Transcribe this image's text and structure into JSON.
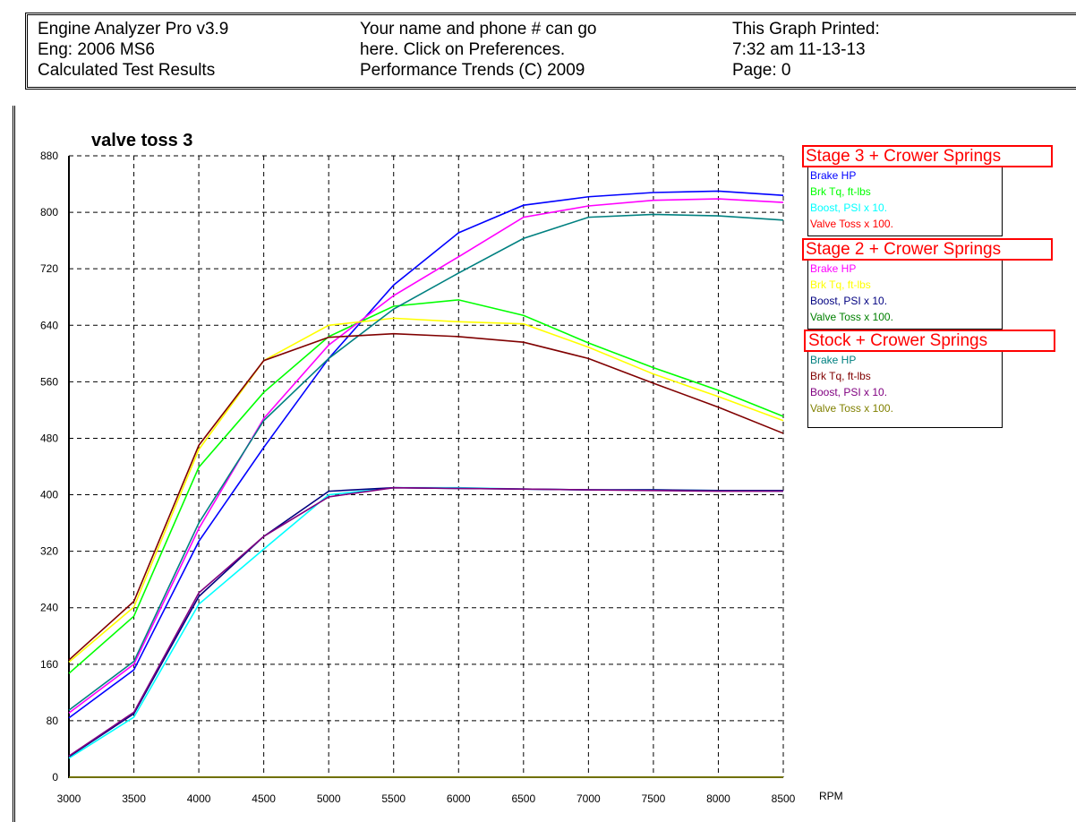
{
  "header": {
    "col1": [
      "Engine Analyzer Pro v3.9",
      "Eng: 2006 MS6",
      "Calculated Test Results"
    ],
    "col2": [
      "Your name and phone # can go",
      "here.  Click on Preferences.",
      "Performance Trends (C) 2009"
    ],
    "col3": [
      "This Graph Printed:",
      "7:32 am 11-13-13",
      "Page: 0"
    ]
  },
  "chart_data": {
    "type": "line",
    "title": "valve toss 3",
    "xlabel": "RPM",
    "ylabel": "",
    "xlim": [
      3000,
      8500
    ],
    "ylim": [
      0,
      880
    ],
    "grid": true,
    "legend_position": "right",
    "x": [
      3000,
      3500,
      4000,
      4500,
      5000,
      5500,
      6000,
      6500,
      7000,
      7500,
      8000,
      8500
    ],
    "x_ticks": [
      "3000",
      "3500",
      "4000",
      "4500",
      "5000",
      "5500",
      "6000",
      "6500",
      "7000",
      "7500",
      "8000",
      "8500"
    ],
    "y_ticks": [
      "0",
      "80",
      "160",
      "240",
      "320",
      "400",
      "480",
      "560",
      "640",
      "720",
      "800",
      "880"
    ],
    "groups": [
      {
        "name": "Stage 3 + Crower Springs",
        "series": [
          {
            "name": "Brake HP",
            "color": "#0000ff",
            "values": [
              84,
              152,
              334,
              467,
              593,
              697,
              771,
              810,
              822,
              828,
              830,
              824
            ]
          },
          {
            "name": "Brk Tq, ft-lbs",
            "color": "#00ff00",
            "values": [
              147,
              228,
              439,
              545,
              624,
              667,
              676,
              654,
              615,
              580,
              548,
              511
            ]
          },
          {
            "name": "Boost, PSI x 10.",
            "color": "#00ffff",
            "values": [
              27,
              85,
              245,
              323,
              400,
              410,
              410,
              408,
              407,
              407,
              406,
              405
            ]
          },
          {
            "name": "Valve Toss x 100.",
            "color": "#ff0000",
            "values": [
              0,
              0,
              0,
              0,
              0,
              0,
              0,
              0,
              0,
              0,
              0,
              0
            ]
          }
        ]
      },
      {
        "name": "Stage 2 + Crower Springs",
        "series": [
          {
            "name": "Brake HP",
            "color": "#ff00ff",
            "values": [
              91,
              160,
              352,
              508,
              612,
              682,
              737,
              793,
              809,
              817,
              819,
              814
            ]
          },
          {
            "name": "Brk Tq, ft-lbs",
            "color": "#ffff00",
            "values": [
              163,
              241,
              464,
              590,
              640,
              650,
              645,
              642,
              609,
              571,
              539,
              505
            ]
          },
          {
            "name": "Boost, PSI x 10.",
            "color": "#000080",
            "values": [
              29,
              90,
              256,
              341,
              405,
              410,
              409,
              408,
              407,
              407,
              406,
              406
            ]
          },
          {
            "name": "Valve Toss x 100.",
            "color": "#008000",
            "values": [
              0,
              0,
              0,
              0,
              0,
              0,
              0,
              0,
              0,
              0,
              0,
              0
            ]
          }
        ]
      },
      {
        "name": "Stock + Crower Springs",
        "series": [
          {
            "name": "Brake HP",
            "color": "#008080",
            "values": [
              95,
              164,
              360,
              505,
              593,
              663,
              714,
              763,
              793,
              797,
              795,
              789
            ]
          },
          {
            "name": "Brk Tq, ft-lbs",
            "color": "#800000",
            "values": [
              166,
              249,
              470,
              590,
              623,
              628,
              624,
              616,
              593,
              558,
              524,
              487
            ]
          },
          {
            "name": "Boost, PSI x 10.",
            "color": "#800080",
            "values": [
              30,
              92,
              261,
              341,
              397,
              410,
              409,
              408,
              407,
              406,
              405,
              405
            ]
          },
          {
            "name": "Valve Toss x 100.",
            "color": "#808000",
            "values": [
              0,
              0,
              0,
              0,
              0,
              0,
              0,
              0,
              0,
              0,
              0,
              0
            ]
          }
        ]
      }
    ]
  }
}
